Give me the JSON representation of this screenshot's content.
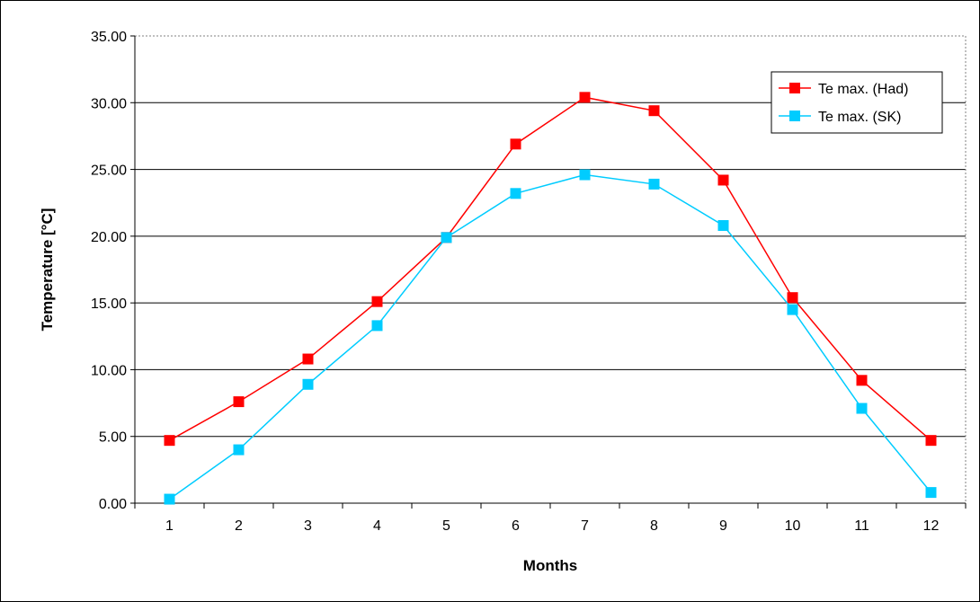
{
  "chart_data": {
    "type": "line",
    "title": "",
    "xlabel": "Months",
    "ylabel": "Temperature [°C]",
    "categories": [
      "1",
      "2",
      "3",
      "4",
      "5",
      "6",
      "7",
      "8",
      "9",
      "10",
      "11",
      "12"
    ],
    "ylim": [
      0,
      35
    ],
    "yticks": [
      "0.00",
      "5.00",
      "10.00",
      "15.00",
      "20.00",
      "25.00",
      "30.00",
      "35.00"
    ],
    "ytick_values": [
      0,
      5,
      10,
      15,
      20,
      25,
      30,
      35
    ],
    "grid": "horizontal",
    "legend_position": "top-right",
    "series": [
      {
        "name": "Te max. (Had)",
        "color": "#ff0000",
        "marker": "square",
        "values": [
          4.7,
          7.6,
          10.8,
          15.1,
          19.9,
          26.9,
          30.4,
          29.4,
          24.2,
          15.4,
          9.2,
          4.7
        ]
      },
      {
        "name": "Te max. (SK)",
        "color": "#00ccff",
        "marker": "square",
        "values": [
          0.3,
          4.0,
          8.9,
          13.3,
          19.9,
          23.2,
          24.6,
          23.9,
          20.8,
          14.5,
          7.1,
          0.8
        ]
      }
    ]
  }
}
